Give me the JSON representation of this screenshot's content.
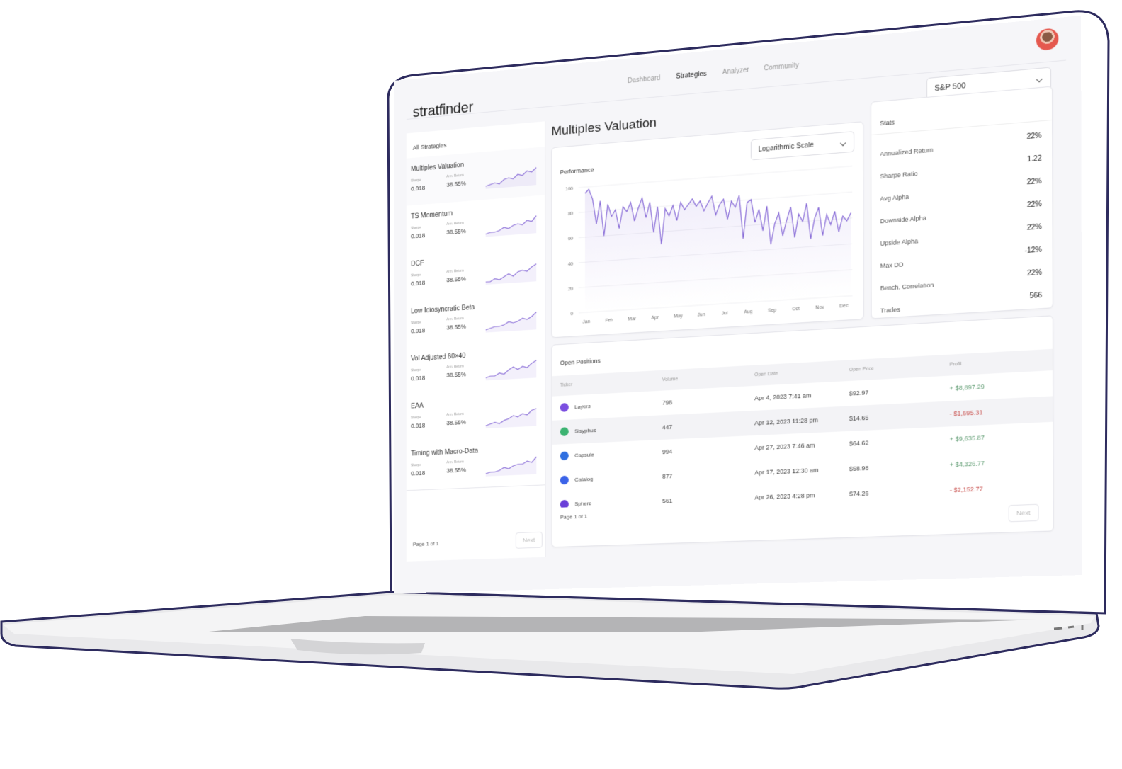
{
  "header": {
    "logo": "stratfinder",
    "nav": [
      "Dashboard",
      "Strategies",
      "Analyzer",
      "Community"
    ],
    "market": "S&P 500"
  },
  "strategies": {
    "title": "All Strategies",
    "list": [
      {
        "name": "Multiples Valuation",
        "sharpe_label": "Sharpe",
        "sharpe": "0.018",
        "return_label": "Ann. Return",
        "return": "38.55%",
        "trend": [
          10,
          11,
          12,
          11,
          14,
          15,
          14,
          17,
          16,
          19,
          18,
          21
        ]
      },
      {
        "name": "TS Momentum",
        "sharpe_label": "Sharpe",
        "sharpe": "0.018",
        "return_label": "Ann. Return",
        "return": "38.55%",
        "trend": [
          10,
          11,
          11,
          12,
          14,
          13,
          15,
          16,
          15,
          18,
          17,
          21
        ]
      },
      {
        "name": "DCF",
        "sharpe_label": "Sharpe",
        "sharpe": "0.018",
        "return_label": "Ann. Return",
        "return": "38.55%",
        "trend": [
          10,
          10,
          12,
          11,
          13,
          15,
          13,
          16,
          17,
          16,
          19,
          21
        ]
      },
      {
        "name": "Low Idiosyncratic Beta",
        "sharpe_label": "Sharpe",
        "sharpe": "0.018",
        "return_label": "Ann. Return",
        "return": "38.55%",
        "trend": [
          10,
          11,
          12,
          12,
          13,
          15,
          14,
          15,
          17,
          16,
          18,
          21
        ]
      },
      {
        "name": "Vol Adjusted 60×40",
        "sharpe_label": "Sharpe",
        "sharpe": "0.018",
        "return_label": "Ann. Return",
        "return": "38.55%",
        "trend": [
          10,
          11,
          11,
          13,
          12,
          15,
          17,
          15,
          17,
          16,
          19,
          21
        ]
      },
      {
        "name": "EAA",
        "sharpe_label": "Sharpe",
        "sharpe": "0.018",
        "return_label": "Ann. Return",
        "return": "38.55%",
        "trend": [
          10,
          11,
          12,
          11,
          13,
          14,
          16,
          15,
          17,
          16,
          19,
          20
        ]
      },
      {
        "name": "Timing with Macro-Data",
        "sharpe_label": "Sharpe",
        "sharpe": "0.018",
        "return_label": "Ann. Return",
        "return": "38.55%",
        "trend": [
          10,
          11,
          11,
          12,
          14,
          13,
          15,
          16,
          16,
          18,
          17,
          21
        ]
      }
    ],
    "page": "Page 1 of 1",
    "next": "Next"
  },
  "main": {
    "title": "Multiples Valuation"
  },
  "performance": {
    "type": "line",
    "title": "Performance",
    "scale": "Logarithmic Scale",
    "color": "#8b6fd8",
    "values": [
      95,
      98,
      90,
      70,
      88,
      60,
      85,
      75,
      80,
      65,
      82,
      78,
      85,
      70,
      80,
      88,
      72,
      84,
      60,
      80,
      50,
      78,
      72,
      80,
      68,
      82,
      76,
      80,
      84,
      78,
      82,
      74,
      80,
      85,
      70,
      78,
      82,
      66,
      80,
      75,
      84,
      50,
      78,
      80,
      62,
      72,
      55,
      74,
      44,
      60,
      68,
      50,
      62,
      72,
      48,
      66,
      60,
      74,
      46,
      62,
      70,
      48,
      64,
      56,
      66,
      50,
      62,
      58,
      64
    ],
    "month_labels": [
      "Jan",
      "Feb",
      "Mar",
      "Apr",
      "May",
      "Jun",
      "Jul",
      "Aug",
      "Sep",
      "Oct",
      "Nov",
      "Dec"
    ],
    "ylim": [
      0,
      100
    ],
    "yticks": [
      0,
      20,
      40,
      60,
      80,
      100
    ]
  },
  "stats": {
    "title": "Stats",
    "rows": [
      {
        "label": "Annualized Return",
        "value": "22%"
      },
      {
        "label": "Sharpe Ratio",
        "value": "1.22"
      },
      {
        "label": "Avg Alpha",
        "value": "22%"
      },
      {
        "label": "Downside Alpha",
        "value": "22%"
      },
      {
        "label": "Upside Alpha",
        "value": "22%"
      },
      {
        "label": "Max DD",
        "value": "-12%"
      },
      {
        "label": "Bench. Correlation",
        "value": "22%"
      },
      {
        "label": "Trades",
        "value": "566"
      }
    ]
  },
  "positions": {
    "title": "Open Positions",
    "columns": [
      "Ticker",
      "Volume",
      "Open Date",
      "Open Price",
      "Profit"
    ],
    "rows": [
      {
        "ticker": "Layers",
        "volume": "798",
        "date": "Apr 4, 2023 7:41 am",
        "price": "$92.97",
        "profit": "+ $8,897.29",
        "icon": "#7b4fe0",
        "color": "#5f9c72"
      },
      {
        "ticker": "Sisyphus",
        "volume": "447",
        "date": "Apr 12, 2023 11:28 pm",
        "price": "$14.65",
        "profit": "- $1,695.31",
        "icon": "#3cb371",
        "color": "#c9514e"
      },
      {
        "ticker": "Capsule",
        "volume": "994",
        "date": "Apr 27, 2023 7:46 am",
        "price": "$64.62",
        "profit": "+ $9,635.87",
        "icon": "#2f6fe0",
        "color": "#5f9c72"
      },
      {
        "ticker": "Catalog",
        "volume": "877",
        "date": "Apr 17, 2023 12:30 am",
        "price": "$58.98",
        "profit": "+ $4,326.77",
        "icon": "#3b63e8",
        "color": "#5f9c72"
      },
      {
        "ticker": "Sphere",
        "volume": "561",
        "date": "Apr 26, 2023 4:28 pm",
        "price": "$74.26",
        "profit": "- $2,152.77",
        "icon": "#6a3fd8",
        "color": "#c9514e"
      }
    ],
    "page": "Page 1 of 1",
    "next": "Next"
  }
}
